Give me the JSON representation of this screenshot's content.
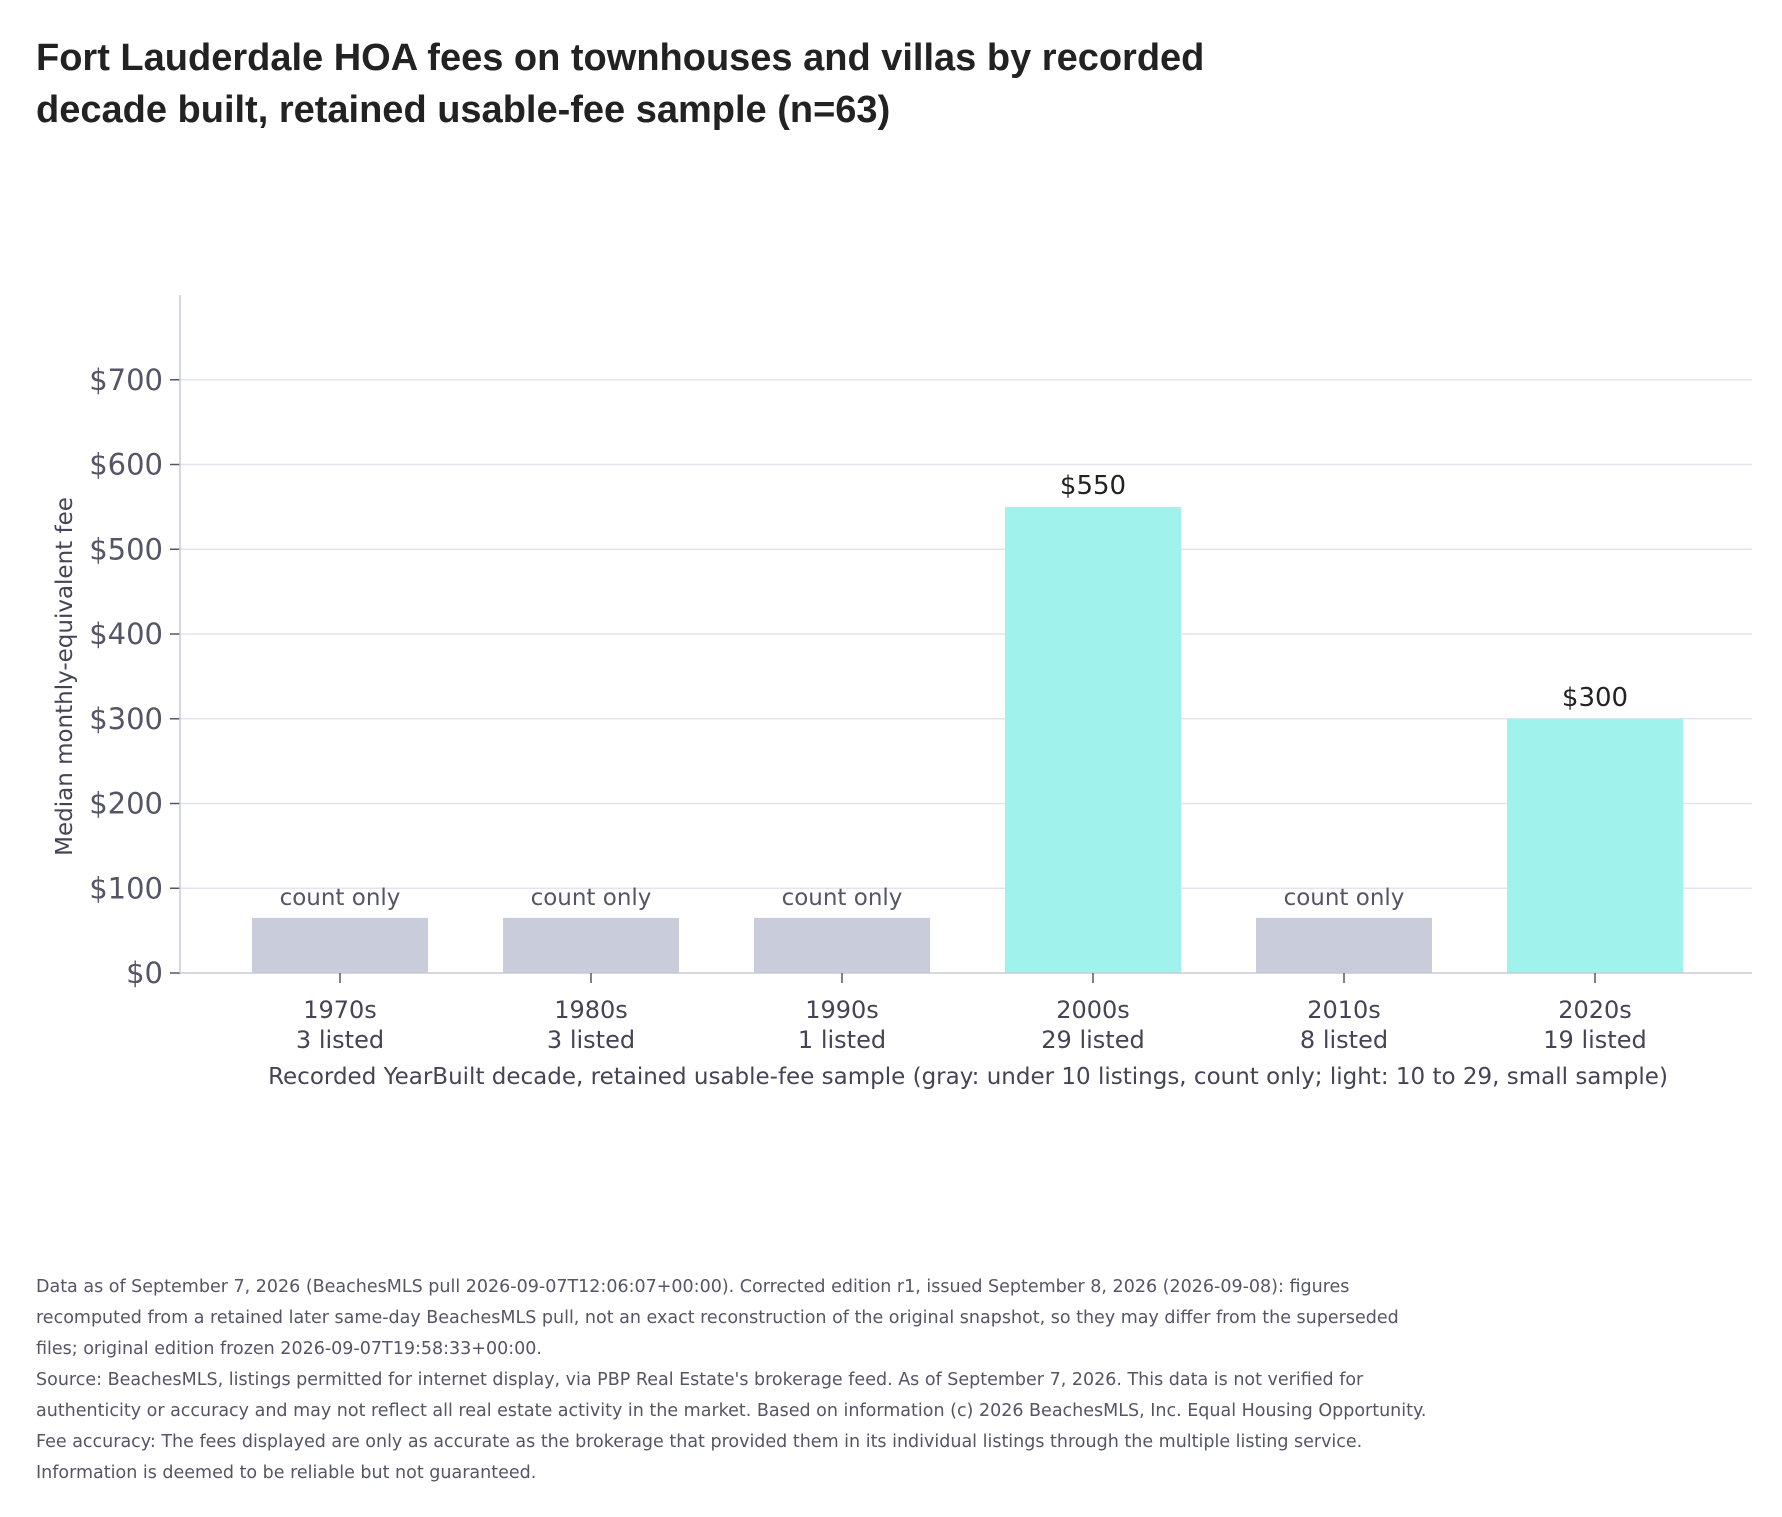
{
  "colors": {
    "count_only_bar": "#c9cddb",
    "small_sample_bar": "#a0f2ec",
    "grid": "#e2e4ee",
    "axis": "#c8cad6"
  },
  "chart_data": {
    "type": "bar",
    "title": "Fort Lauderdale HOA fees on townhouses and villas by recorded decade built, retained usable-fee sample (n=63)",
    "xlabel": "Recorded YearBuilt decade, retained usable-fee sample (gray: under 10 listings, count only; light: 10 to 29, small sample)",
    "ylabel": "Median monthly-equivalent fee",
    "ylim": [
      0,
      800
    ],
    "yticks": [
      {
        "value": 0,
        "label": "$0"
      },
      {
        "value": 100,
        "label": "$100"
      },
      {
        "value": 200,
        "label": "$200"
      },
      {
        "value": 300,
        "label": "$300"
      },
      {
        "value": 400,
        "label": "$400"
      },
      {
        "value": 500,
        "label": "$500"
      },
      {
        "value": 600,
        "label": "$600"
      },
      {
        "value": 700,
        "label": "$700"
      }
    ],
    "grid": true,
    "bars": [
      {
        "category": "1970s",
        "count_label": "3 listed",
        "value": null,
        "placeholder_value": 65,
        "label": "count only",
        "status": "count_only"
      },
      {
        "category": "1980s",
        "count_label": "3 listed",
        "value": null,
        "placeholder_value": 65,
        "label": "count only",
        "status": "count_only"
      },
      {
        "category": "1990s",
        "count_label": "1 listed",
        "value": null,
        "placeholder_value": 65,
        "label": "count only",
        "status": "count_only"
      },
      {
        "category": "2000s",
        "count_label": "29 listed",
        "value": 550,
        "label": "$550",
        "status": "small_sample"
      },
      {
        "category": "2010s",
        "count_label": "8 listed",
        "value": null,
        "placeholder_value": 65,
        "label": "count only",
        "status": "count_only"
      },
      {
        "category": "2020s",
        "count_label": "19 listed",
        "value": 300,
        "label": "$300",
        "status": "small_sample"
      }
    ]
  },
  "footnotes": [
    "Data as of September 7, 2026 (BeachesMLS pull 2026-09-07T12:06:07+00:00). Corrected edition r1, issued September 8, 2026 (2026-09-08): figures recomputed from a retained later same-day BeachesMLS pull, not an exact reconstruction of the original snapshot, so they may differ from the superseded files; original edition frozen 2026-09-07T19:58:33+00:00.",
    "Source: BeachesMLS, listings permitted for internet display, via PBP Real Estate's brokerage feed. As of September 7, 2026. This data is not verified for authenticity or accuracy and may not reflect all real estate activity in the market. Based on information (c) 2026 BeachesMLS, Inc. Equal Housing Opportunity. Fee accuracy: The fees displayed are only as accurate as the brokerage that provided them in its individual listings through the multiple listing service. Information is deemed to be reliable but not guaranteed."
  ]
}
